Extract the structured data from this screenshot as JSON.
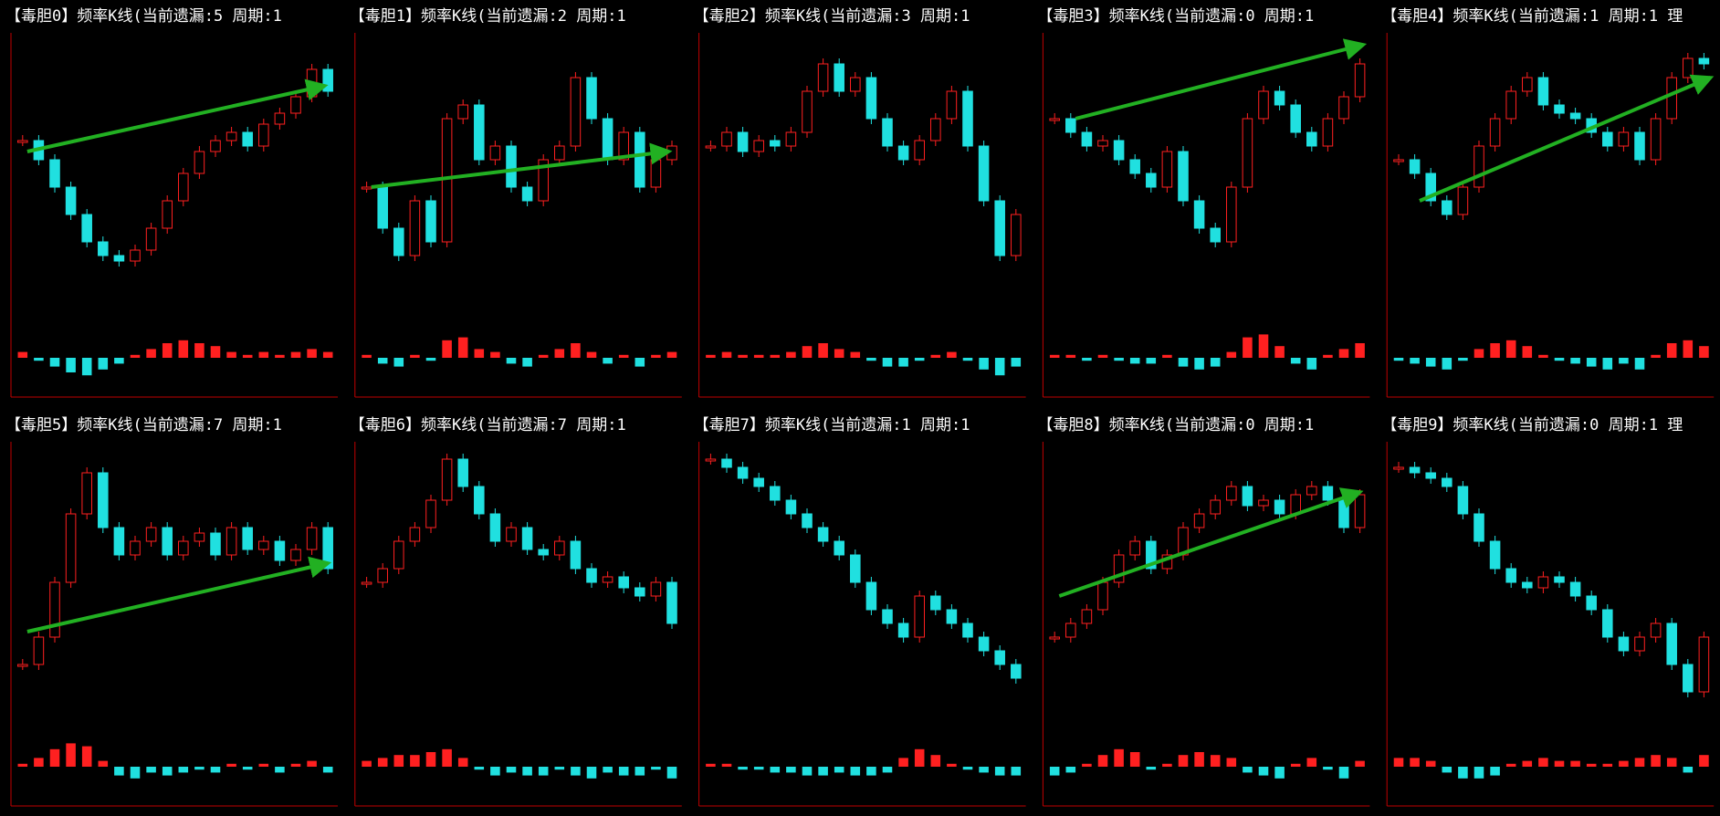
{
  "chart_data": [
    {
      "type": "candlestick",
      "title": "【毒胆0】频率K线(当前遗漏:5 周期:1",
      "closes": [
        62,
        55,
        45,
        35,
        25,
        20,
        18,
        22,
        30,
        40,
        50,
        58,
        62,
        65,
        60,
        68,
        72,
        78,
        88,
        80
      ],
      "macd": [
        0.2,
        -0.1,
        -0.3,
        -0.5,
        -0.6,
        -0.4,
        -0.2,
        0.1,
        0.3,
        0.5,
        0.6,
        0.5,
        0.4,
        0.2,
        0.1,
        0.2,
        0.1,
        0.2,
        0.3,
        0.2
      ]
    },
    {
      "type": "candlestick",
      "title": "【毒胆1】频率K线(当前遗漏:2 周期:1",
      "closes": [
        45,
        30,
        20,
        40,
        25,
        70,
        75,
        55,
        60,
        45,
        40,
        55,
        60,
        85,
        70,
        55,
        65,
        45,
        55,
        60
      ],
      "macd": [
        0.1,
        -0.2,
        -0.3,
        0.1,
        -0.1,
        0.6,
        0.7,
        0.3,
        0.2,
        -0.2,
        -0.3,
        0.1,
        0.3,
        0.5,
        0.2,
        -0.2,
        0.1,
        -0.3,
        0.1,
        0.2
      ]
    },
    {
      "type": "candlestick",
      "title": "【毒胆2】频率K线(当前遗漏:3 周期:1",
      "closes": [
        60,
        65,
        58,
        62,
        60,
        65,
        80,
        90,
        80,
        85,
        70,
        60,
        55,
        62,
        70,
        80,
        60,
        40,
        20,
        35
      ],
      "macd": [
        0.1,
        0.2,
        0.1,
        0.1,
        0.1,
        0.2,
        0.4,
        0.5,
        0.3,
        0.2,
        -0.1,
        -0.3,
        -0.3,
        -0.1,
        0.1,
        0.2,
        -0.1,
        -0.4,
        -0.6,
        -0.3
      ]
    },
    {
      "type": "candlestick",
      "title": "【毒胆3】频率K线(当前遗漏:0 周期:1",
      "closes": [
        70,
        65,
        60,
        62,
        55,
        50,
        45,
        58,
        40,
        30,
        25,
        45,
        70,
        80,
        75,
        65,
        60,
        70,
        78,
        90
      ],
      "macd": [
        0.1,
        0.1,
        -0.1,
        0.1,
        -0.1,
        -0.2,
        -0.2,
        0.1,
        -0.3,
        -0.4,
        -0.3,
        0.2,
        0.7,
        0.8,
        0.4,
        -0.2,
        -0.4,
        0.1,
        0.3,
        0.5
      ]
    },
    {
      "type": "candlestick",
      "title": "【毒胆4】频率K线(当前遗漏:1 周期:1 理",
      "closes": [
        55,
        50,
        40,
        35,
        45,
        60,
        70,
        80,
        85,
        75,
        72,
        70,
        65,
        60,
        65,
        55,
        70,
        85,
        92,
        90
      ],
      "macd": [
        -0.1,
        -0.2,
        -0.3,
        -0.4,
        -0.1,
        0.3,
        0.5,
        0.6,
        0.4,
        0.1,
        -0.1,
        -0.2,
        -0.3,
        -0.4,
        -0.2,
        -0.4,
        0.1,
        0.5,
        0.6,
        0.4
      ]
    },
    {
      "type": "candlestick",
      "title": "【毒胆5】频率K线(当前遗漏:7 周期:1",
      "closes": [
        20,
        30,
        50,
        75,
        90,
        70,
        60,
        65,
        70,
        60,
        65,
        68,
        60,
        70,
        62,
        65,
        58,
        62,
        70,
        55
      ],
      "macd": [
        0.1,
        0.3,
        0.6,
        0.8,
        0.7,
        0.2,
        -0.3,
        -0.4,
        -0.2,
        -0.3,
        -0.2,
        -0.1,
        -0.2,
        0.1,
        -0.1,
        0.1,
        -0.2,
        0.1,
        0.2,
        -0.2
      ]
    },
    {
      "type": "candlestick",
      "title": "【毒胆6】频率K线(当前遗漏:7 周期:1",
      "closes": [
        50,
        55,
        65,
        70,
        80,
        95,
        85,
        75,
        65,
        70,
        62,
        60,
        65,
        55,
        50,
        52,
        48,
        45,
        50,
        35
      ],
      "macd": [
        0.2,
        0.3,
        0.4,
        0.4,
        0.5,
        0.6,
        0.3,
        -0.1,
        -0.3,
        -0.2,
        -0.3,
        -0.3,
        -0.1,
        -0.3,
        -0.4,
        -0.2,
        -0.3,
        -0.3,
        -0.1,
        -0.4
      ]
    },
    {
      "type": "candlestick",
      "title": "【毒胆7】频率K线(当前遗漏:1 周期:1",
      "closes": [
        95,
        92,
        88,
        85,
        80,
        75,
        70,
        65,
        60,
        50,
        40,
        35,
        30,
        45,
        40,
        35,
        30,
        25,
        20,
        15
      ],
      "macd": [
        0.1,
        0.1,
        -0.1,
        -0.1,
        -0.2,
        -0.2,
        -0.3,
        -0.3,
        -0.2,
        -0.3,
        -0.3,
        -0.2,
        0.3,
        0.6,
        0.4,
        0.1,
        -0.1,
        -0.2,
        -0.3,
        -0.3
      ]
    },
    {
      "type": "candlestick",
      "title": "【毒胆8】频率K线(当前遗漏:0 周期:1",
      "closes": [
        30,
        35,
        40,
        50,
        60,
        65,
        55,
        60,
        70,
        75,
        80,
        85,
        78,
        80,
        75,
        82,
        85,
        80,
        70,
        82
      ],
      "macd": [
        -0.3,
        -0.2,
        0.1,
        0.4,
        0.6,
        0.5,
        -0.1,
        0.1,
        0.4,
        0.5,
        0.4,
        0.3,
        -0.2,
        -0.3,
        -0.4,
        0.1,
        0.3,
        -0.1,
        -0.4,
        0.2
      ]
    },
    {
      "type": "candlestick",
      "title": "【毒胆9】频率K线(当前遗漏:0 周期:1 理",
      "closes": [
        92,
        90,
        88,
        85,
        75,
        65,
        55,
        50,
        48,
        52,
        50,
        45,
        40,
        30,
        25,
        30,
        35,
        20,
        10,
        30
      ],
      "macd": [
        0.3,
        0.3,
        0.2,
        -0.2,
        -0.4,
        -0.4,
        -0.3,
        0.1,
        0.2,
        0.3,
        0.2,
        0.2,
        0.1,
        0.1,
        0.2,
        0.3,
        0.4,
        0.3,
        -0.2,
        0.4
      ]
    }
  ]
}
